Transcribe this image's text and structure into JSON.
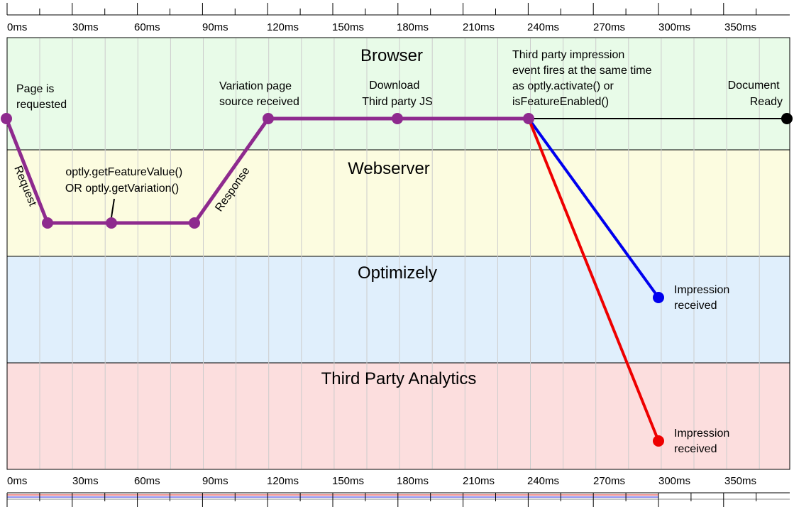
{
  "timeline": {
    "ticks": [
      {
        "t": 0,
        "label": "0ms"
      },
      {
        "t": 30,
        "label": "30ms"
      },
      {
        "t": 60,
        "label": "60ms"
      },
      {
        "t": 90,
        "label": "90ms"
      },
      {
        "t": 120,
        "label": "120ms"
      },
      {
        "t": 150,
        "label": "150ms"
      },
      {
        "t": 180,
        "label": "180ms"
      },
      {
        "t": 210,
        "label": "210ms"
      },
      {
        "t": 240,
        "label": "240ms"
      },
      {
        "t": 270,
        "label": "270ms"
      },
      {
        "t": 300,
        "label": "300ms"
      },
      {
        "t": 350,
        "label": "350ms"
      }
    ]
  },
  "lanes": [
    {
      "id": "browser",
      "title": "Browser",
      "color": "#e8fbe8"
    },
    {
      "id": "webserver",
      "title": "Webserver",
      "color": "#fcfce0"
    },
    {
      "id": "optimizely",
      "title": "Optimizely",
      "color": "#e0effc"
    },
    {
      "id": "analytics",
      "title": "Third Party Analytics",
      "color": "#fcdede"
    }
  ],
  "colors": {
    "main_path": "#8e2a8e",
    "optimizely_path": "#0000ee",
    "analytics_path": "#ee0000",
    "document_line": "#000000",
    "lane_border": "#000000",
    "grid": "#cccccc"
  },
  "labels": {
    "page_requested": [
      "Page is",
      "requested"
    ],
    "request": "Request",
    "get_feature": [
      "optly.getFeatureValue()",
      "OR optly.getVariation()"
    ],
    "response": "Response",
    "variation_received": [
      "Variation page",
      "source received"
    ],
    "download_js": [
      "Download",
      "Third party JS"
    ],
    "third_party_event": [
      "Third party impression",
      "event fires at the same time",
      "as optly.activate() or",
      "isFeatureEnabled()"
    ],
    "document_ready": [
      "Document",
      "Ready"
    ],
    "impression_optimizely": [
      "Impression",
      "received"
    ],
    "impression_analytics": [
      "Impression",
      "received"
    ]
  }
}
